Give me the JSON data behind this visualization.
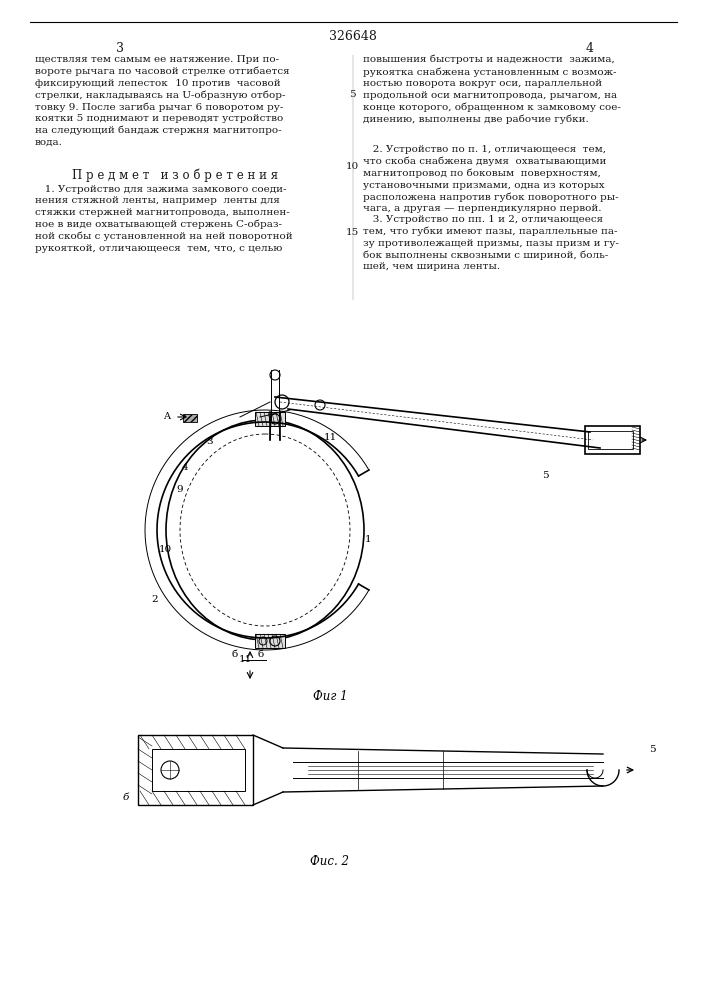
{
  "page_number_center": "326648",
  "page_left": "3",
  "page_right": "4",
  "bg_color": "#ffffff",
  "text_color": "#1a1a1a",
  "fig_caption1": "Фиг 1",
  "fig_caption2": "Фис. 2"
}
